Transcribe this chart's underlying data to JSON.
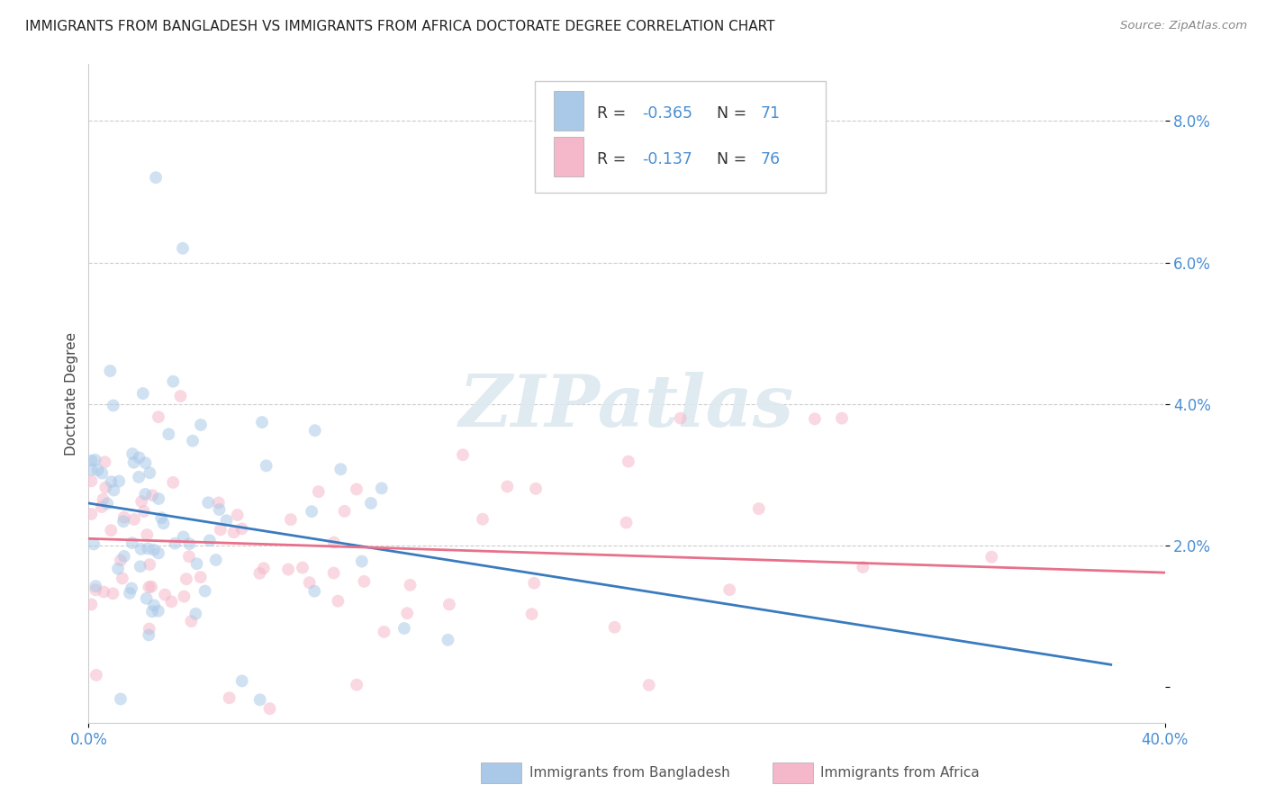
{
  "title": "IMMIGRANTS FROM BANGLADESH VS IMMIGRANTS FROM AFRICA DOCTORATE DEGREE CORRELATION CHART",
  "source": "Source: ZipAtlas.com",
  "ylabel": "Doctorate Degree",
  "xlim": [
    0.0,
    0.4
  ],
  "ylim": [
    -0.005,
    0.088
  ],
  "ytick_vals": [
    0.0,
    0.02,
    0.04,
    0.06,
    0.08
  ],
  "ytick_labels": [
    "",
    "2.0%",
    "4.0%",
    "6.0%",
    "8.0%"
  ],
  "xtick_vals": [
    0.0,
    0.4
  ],
  "xtick_labels": [
    "0.0%",
    "40.0%"
  ],
  "series1_label": "Immigrants from Bangladesh",
  "series2_label": "Immigrants from Africa",
  "series1_R": "-0.365",
  "series1_N": "71",
  "series2_R": "-0.137",
  "series2_N": "76",
  "series1_color": "#aac9e8",
  "series2_color": "#f5b8cb",
  "series1_line_color": "#3a7bbf",
  "series2_line_color": "#e8708a",
  "marker_size": 100,
  "marker_alpha": 0.55,
  "background_color": "#ffffff",
  "grid_color": "#cccccc",
  "tick_color": "#4a8fd4",
  "title_color": "#222222",
  "source_color": "#888888",
  "ylabel_color": "#444444",
  "watermark_color": "#dce8f0",
  "series1_line_intercept": 0.026,
  "series1_line_slope": -0.06,
  "series2_line_intercept": 0.021,
  "series2_line_slope": -0.012
}
